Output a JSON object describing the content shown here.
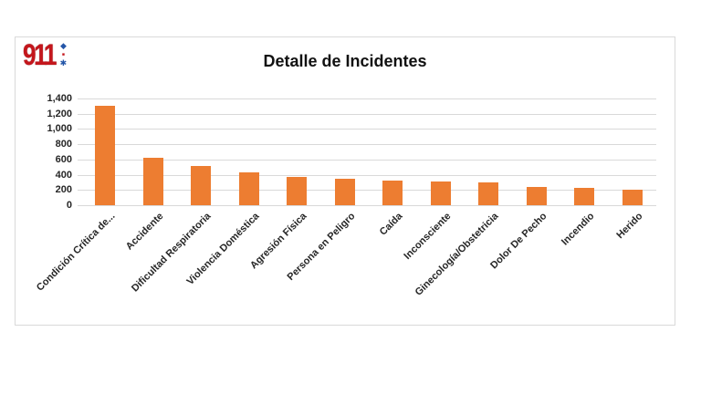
{
  "logo": {
    "text": "911",
    "text_color": "#c4161c",
    "mark_blue_color": "#2456a8",
    "marks": [
      "diamond-icon",
      "pr-dot-icon",
      "asterisk-icon"
    ]
  },
  "chart_data": {
    "type": "bar",
    "title": "Detalle de Incidentes",
    "categories": [
      "Condición Crítica de...",
      "Accidente",
      "Dificultad Respiratoria",
      "Violencia Doméstica",
      "Agresión Física",
      "Persona en Peligro",
      "Caída",
      "Inconsciente",
      "Ginecología/Obstetricia",
      "Dolor De Pecho",
      "Incendio",
      "Herido"
    ],
    "values": [
      1300,
      620,
      510,
      425,
      370,
      345,
      320,
      310,
      295,
      240,
      225,
      200
    ],
    "xlabel": "",
    "ylabel": "",
    "ylim": [
      0,
      1400
    ],
    "ytick_step": 200,
    "ytick_labels_top_down": [
      "1,400",
      "1,200",
      "1,000",
      "800",
      "600",
      "400",
      "200",
      "0"
    ],
    "grid": true,
    "legend": false,
    "bar_color": "#ed7d31",
    "gridline_color": "#d9d9d9",
    "label_color": "#262626"
  }
}
